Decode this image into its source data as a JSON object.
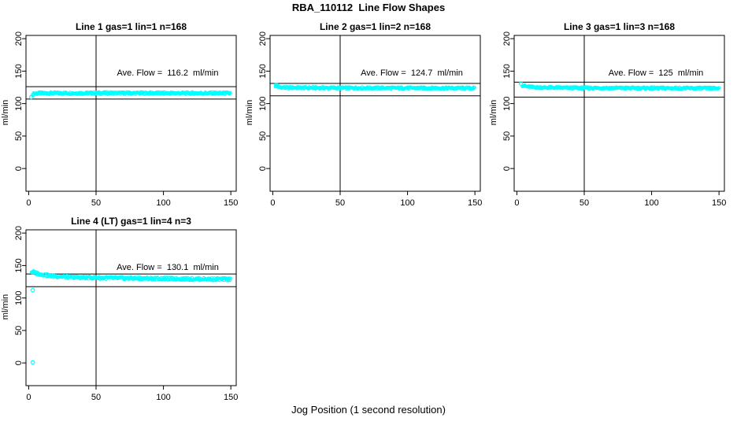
{
  "figure": {
    "title": "RBA_110112  Line Flow Shapes",
    "x_axis_title": "Jog Position (1 second resolution)",
    "background_color": "#FFFFFF",
    "axis_color": "#000000",
    "point_color": "#00FFFF"
  },
  "chart_data": [
    {
      "type": "scatter",
      "title": "Line 1 gas=1 lin=1 n=168",
      "gas": 1,
      "lin": 1,
      "n": 168,
      "annotation": "Ave. Flow =  116.2  ml/min",
      "ave_flow_ml_min": 116.2,
      "ylabel": "ml/min",
      "xticks": [
        0,
        50,
        100,
        150
      ],
      "yticks": [
        0,
        50,
        100,
        150,
        200
      ],
      "xlim": [
        -2,
        154
      ],
      "ylim": [
        -35,
        205
      ],
      "vline_x": 50,
      "hlines": [
        126,
        107
      ],
      "band_halfwidth": 1.7,
      "band": [
        [
          3,
          114.5
        ],
        [
          5,
          115.5
        ],
        [
          8,
          116
        ],
        [
          60,
          116.2
        ],
        [
          150,
          116
        ]
      ],
      "outliers": [
        [
          2,
          110
        ]
      ]
    },
    {
      "type": "scatter",
      "title": "Line 2 gas=1 lin=2 n=168",
      "gas": 1,
      "lin": 2,
      "n": 168,
      "annotation": "Ave. Flow =  124.7  ml/min",
      "ave_flow_ml_min": 124.7,
      "ylabel": "ml/min",
      "xticks": [
        0,
        50,
        100,
        150
      ],
      "yticks": [
        0,
        50,
        100,
        150,
        200
      ],
      "xlim": [
        -2,
        154
      ],
      "ylim": [
        -35,
        205
      ],
      "vline_x": 50,
      "hlines": [
        131,
        112
      ],
      "band_halfwidth": 1.5,
      "band": [
        [
          2,
          127
        ],
        [
          5,
          125.5
        ],
        [
          10,
          124.5
        ],
        [
          40,
          124.2
        ],
        [
          150,
          123.8
        ]
      ],
      "outliers": [
        [
          2.5,
          129
        ]
      ]
    },
    {
      "type": "scatter",
      "title": "Line 3 gas=1 lin=3 n=168",
      "gas": 1,
      "lin": 3,
      "n": 168,
      "annotation": "Ave. Flow =  125  ml/min",
      "ave_flow_ml_min": 125,
      "ylabel": "ml/min",
      "xticks": [
        0,
        50,
        100,
        150
      ],
      "yticks": [
        0,
        50,
        100,
        150,
        200
      ],
      "xlim": [
        -2,
        154
      ],
      "ylim": [
        -35,
        205
      ],
      "vline_x": 50,
      "hlines": [
        133,
        110
      ],
      "band_halfwidth": 1.5,
      "band": [
        [
          4,
          128
        ],
        [
          8,
          126
        ],
        [
          15,
          124.8
        ],
        [
          40,
          124.2
        ],
        [
          150,
          123.5
        ]
      ],
      "outliers": [
        [
          3,
          131
        ]
      ]
    },
    {
      "type": "scatter",
      "title": "Line 4 (LT) gas=1 lin=4 n=3",
      "gas": 1,
      "lin": 4,
      "n": 3,
      "annotation": "Ave. Flow =  130.1  ml/min",
      "ave_flow_ml_min": 130.1,
      "ylabel": "ml/min",
      "xticks": [
        0,
        50,
        100,
        150
      ],
      "yticks": [
        0,
        50,
        100,
        150,
        200
      ],
      "xlim": [
        -2,
        154
      ],
      "ylim": [
        -35,
        205
      ],
      "vline_x": 50,
      "hlines": [
        137,
        117.5
      ],
      "band_halfwidth": 2.0,
      "band": [
        [
          2,
          140.5
        ],
        [
          4,
          139.5
        ],
        [
          7,
          137.5
        ],
        [
          11,
          135.8
        ],
        [
          16,
          134.3
        ],
        [
          22,
          133.2
        ],
        [
          30,
          132.3
        ],
        [
          40,
          131.6
        ],
        [
          55,
          131
        ],
        [
          75,
          130.4
        ],
        [
          100,
          129.8
        ],
        [
          125,
          129.3
        ],
        [
          150,
          128.9
        ]
      ],
      "outliers": [
        [
          3,
          112
        ],
        [
          3,
          1
        ]
      ]
    }
  ]
}
